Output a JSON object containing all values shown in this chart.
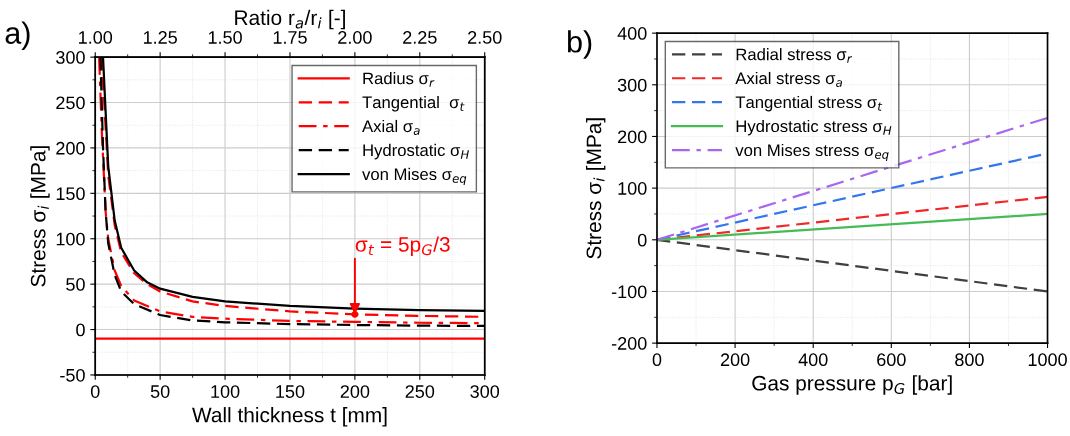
{
  "chart_data": [
    {
      "type": "line",
      "annotations": [
        "a)",
        {
          "text": "σ$_{t}$ = 5p$_{G}$/3",
          "x": 200,
          "y": 16.7
        }
      ],
      "xlabel": "Wall thickness t [mm]",
      "ylabel": "Stress σ$_{i}$ [MPa]",
      "x2label": "Ratio r$_{a}$/r$_{i}$ [-]",
      "xlim": [
        0,
        300
      ],
      "xticks": [
        0,
        50,
        100,
        150,
        200,
        250,
        300
      ],
      "ylim": [
        -50,
        300
      ],
      "yticks": [
        -50,
        0,
        50,
        100,
        150,
        200,
        250,
        300
      ],
      "x2lim": [
        1.0,
        2.5
      ],
      "x2ticks": [
        {
          "value": 1.0,
          "label": "1.00"
        },
        {
          "value": 1.25,
          "label": "1.25"
        },
        {
          "value": 1.5,
          "label": "1.50"
        },
        {
          "value": 1.75,
          "label": "1.75"
        },
        {
          "value": 2.0,
          "label": "2.00"
        },
        {
          "value": 2.25,
          "label": "2.25"
        },
        {
          "value": 2.5,
          "label": "2.50"
        }
      ],
      "grid": true,
      "legend": "top right",
      "series": [
        {
          "name": "Radius σ$_{r}$",
          "color": "#ff0000",
          "line_style": "solid",
          "x": [
            0,
            300
          ],
          "values": [
            -10,
            -10
          ]
        },
        {
          "name": "Tangential  σ$_{t}$",
          "color": "#ff0000",
          "line_style": "dashed",
          "x": [
            5,
            10,
            15,
            20,
            30,
            40,
            50,
            75,
            100,
            150,
            200,
            250,
            300
          ],
          "values": [
            300,
            170,
            115,
            85,
            62,
            50,
            42,
            31,
            26,
            20,
            16.7,
            15,
            14
          ]
        },
        {
          "name": "Axial σ$_{a}$",
          "color": "#ff0000",
          "line_style": "dashdot",
          "x": [
            3,
            5,
            8,
            10,
            15,
            20,
            30,
            50,
            75,
            100,
            150,
            200,
            250,
            300
          ],
          "values": [
            300,
            220,
            130,
            100,
            65,
            48,
            32,
            20,
            14,
            12,
            9.5,
            8.5,
            7.5,
            7
          ]
        },
        {
          "name": "Hydrostatic σ$_{H}$",
          "color": "#000000",
          "line_style": "dashed",
          "x": [
            4,
            6,
            8,
            10,
            15,
            20,
            30,
            50,
            75,
            100,
            150,
            200,
            250,
            300
          ],
          "values": [
            300,
            200,
            130,
            95,
            60,
            42,
            28,
            16,
            10,
            8,
            6,
            5,
            4.3,
            4
          ]
        },
        {
          "name": "von Mises σ$_{eq}$",
          "color": "#000000",
          "line_style": "solid",
          "x": [
            6,
            10,
            15,
            20,
            30,
            40,
            50,
            75,
            100,
            150,
            200,
            250,
            300
          ],
          "values": [
            300,
            180,
            120,
            90,
            65,
            52,
            45,
            36,
            31,
            26,
            23,
            21.5,
            20.5
          ]
        }
      ]
    },
    {
      "type": "line",
      "annotations": [
        "b)"
      ],
      "xlabel": "Gas pressure p$_{G}$ [bar]",
      "ylabel": "Stress σ$_{i}$ [MPa]",
      "xlim": [
        0,
        1000
      ],
      "xticks": [
        0,
        200,
        400,
        600,
        800,
        1000
      ],
      "ylim": [
        -200,
        400
      ],
      "yticks": [
        -200,
        -100,
        0,
        100,
        200,
        300,
        400
      ],
      "grid": true,
      "legend": "top left",
      "series": [
        {
          "name": "Radial stress σ$_{r}$",
          "color": "#404040",
          "line_style": "dashed",
          "x": [
            0,
            1000
          ],
          "values": [
            0,
            -100
          ]
        },
        {
          "name": "Axial stress σ$_{a}$",
          "color": "#f02828",
          "line_style": "dashed",
          "x": [
            0,
            1000
          ],
          "values": [
            0,
            83
          ]
        },
        {
          "name": "Tangential stress σ$_{t}$",
          "color": "#3377ee",
          "line_style": "dashed",
          "x": [
            0,
            1000
          ],
          "values": [
            0,
            167
          ]
        },
        {
          "name": "Hydrostatic stress σ$_{H}$",
          "color": "#44bb55",
          "line_style": "solid",
          "x": [
            0,
            1000
          ],
          "values": [
            0,
            50
          ]
        },
        {
          "name": "von Mises stress σ$_{eq}$",
          "color": "#aa66ee",
          "line_style": "dashdot",
          "x": [
            0,
            1000
          ],
          "values": [
            0,
            236
          ]
        }
      ]
    }
  ]
}
